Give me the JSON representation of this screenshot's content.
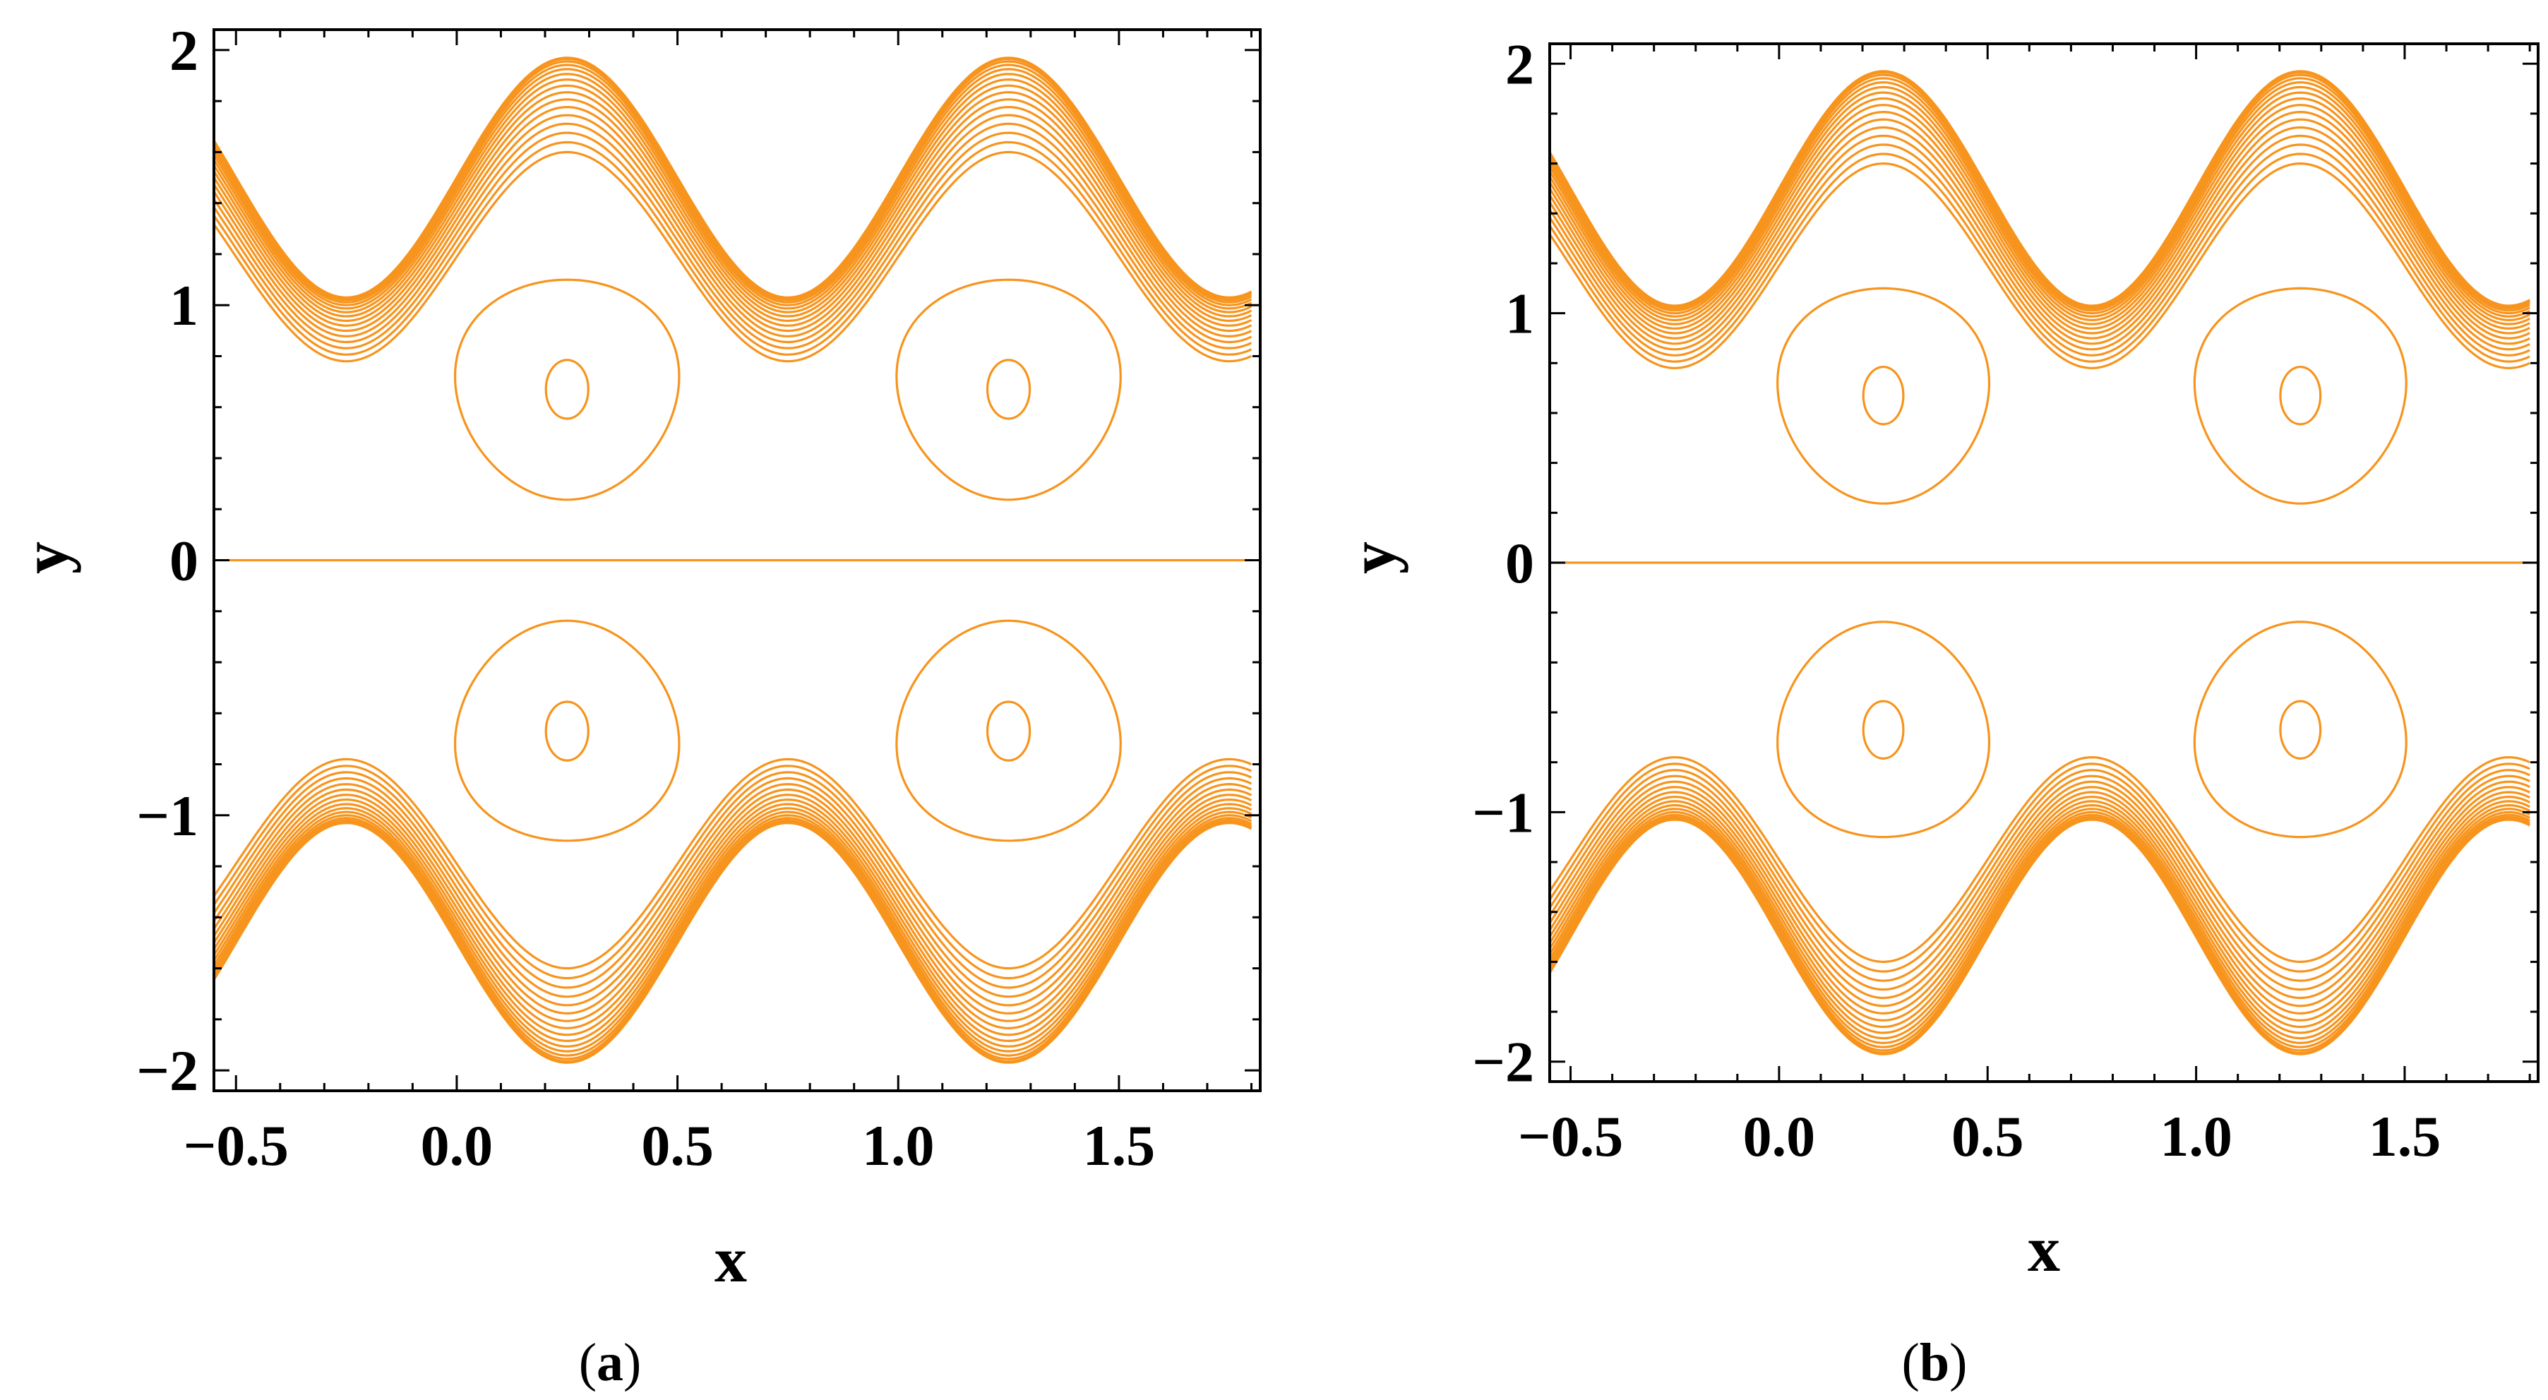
{
  "colors": {
    "contour": "#F7941D",
    "axis": "#000000",
    "background": "#ffffff"
  },
  "chart_data": [
    {
      "type": "contour",
      "panel": "a",
      "caption_letter": "a",
      "caption_open": "(",
      "caption_close": ")",
      "xlabel": "x",
      "ylabel": "y",
      "xlim": [
        -0.55,
        1.82
      ],
      "ylim": [
        -2.08,
        2.08
      ],
      "xticks": [
        {
          "value": -0.5,
          "label": "−0.5"
        },
        {
          "value": 0.0,
          "label": "0.0"
        },
        {
          "value": 0.5,
          "label": "0.5"
        },
        {
          "value": 1.0,
          "label": "1.0"
        },
        {
          "value": 1.5,
          "label": "1.5"
        }
      ],
      "yticks": [
        {
          "value": -2,
          "label": "−2"
        },
        {
          "value": -1,
          "label": "−1"
        },
        {
          "value": 0,
          "label": "0"
        },
        {
          "value": 1,
          "label": "1"
        },
        {
          "value": 2,
          "label": "2"
        }
      ],
      "wave_bands": {
        "period": 1.0,
        "outer_amplitude": 0.47,
        "outer_mean": 1.5,
        "inner_amplitude": 0.41,
        "inner_mean": 1.19,
        "count": 16,
        "x_range": [
          -0.55,
          1.8
        ]
      },
      "closed_cells": [
        {
          "cx": 0.25,
          "cy": 0.67,
          "rx": 0.252,
          "ry": 0.445,
          "inner_rx": 0.048,
          "inner_ry": 0.115
        },
        {
          "cx": 1.25,
          "cy": 0.67,
          "rx": 0.252,
          "ry": 0.445,
          "inner_rx": 0.048,
          "inner_ry": 0.115
        },
        {
          "cx": 0.25,
          "cy": -0.67,
          "rx": 0.252,
          "ry": 0.445,
          "inner_rx": 0.048,
          "inner_ry": 0.115
        },
        {
          "cx": 1.25,
          "cy": -0.67,
          "rx": 0.252,
          "ry": 0.445,
          "inner_rx": 0.048,
          "inner_ry": 0.115
        }
      ],
      "center_line": {
        "y": 0,
        "x_range": [
          -0.55,
          1.8
        ]
      }
    },
    {
      "type": "contour",
      "panel": "b",
      "caption_letter": "b",
      "caption_open": "(",
      "caption_close": ")",
      "xlabel": "x",
      "ylabel": "y",
      "xlim": [
        -0.55,
        1.82
      ],
      "ylim": [
        -2.08,
        2.08
      ],
      "xticks": [
        {
          "value": -0.5,
          "label": "−0.5"
        },
        {
          "value": 0.0,
          "label": "0.0"
        },
        {
          "value": 0.5,
          "label": "0.5"
        },
        {
          "value": 1.0,
          "label": "1.0"
        },
        {
          "value": 1.5,
          "label": "1.5"
        }
      ],
      "yticks": [
        {
          "value": -2,
          "label": "−2"
        },
        {
          "value": -1,
          "label": "−1"
        },
        {
          "value": 0,
          "label": "0"
        },
        {
          "value": 1,
          "label": "1"
        },
        {
          "value": 2,
          "label": "2"
        }
      ],
      "wave_bands": {
        "period": 1.0,
        "outer_amplitude": 0.47,
        "outer_mean": 1.5,
        "inner_amplitude": 0.41,
        "inner_mean": 1.19,
        "count": 16,
        "x_range": [
          -0.55,
          1.8
        ]
      },
      "closed_cells": [
        {
          "cx": 0.25,
          "cy": 0.67,
          "rx": 0.252,
          "ry": 0.445,
          "inner_rx": 0.048,
          "inner_ry": 0.115
        },
        {
          "cx": 1.25,
          "cy": 0.67,
          "rx": 0.252,
          "ry": 0.445,
          "inner_rx": 0.048,
          "inner_ry": 0.115
        },
        {
          "cx": 0.25,
          "cy": -0.67,
          "rx": 0.252,
          "ry": 0.445,
          "inner_rx": 0.048,
          "inner_ry": 0.115
        },
        {
          "cx": 1.25,
          "cy": -0.67,
          "rx": 0.252,
          "ry": 0.445,
          "inner_rx": 0.048,
          "inner_ry": 0.115
        }
      ],
      "center_line": {
        "y": 0,
        "x_range": [
          -0.55,
          1.8
        ]
      }
    }
  ]
}
